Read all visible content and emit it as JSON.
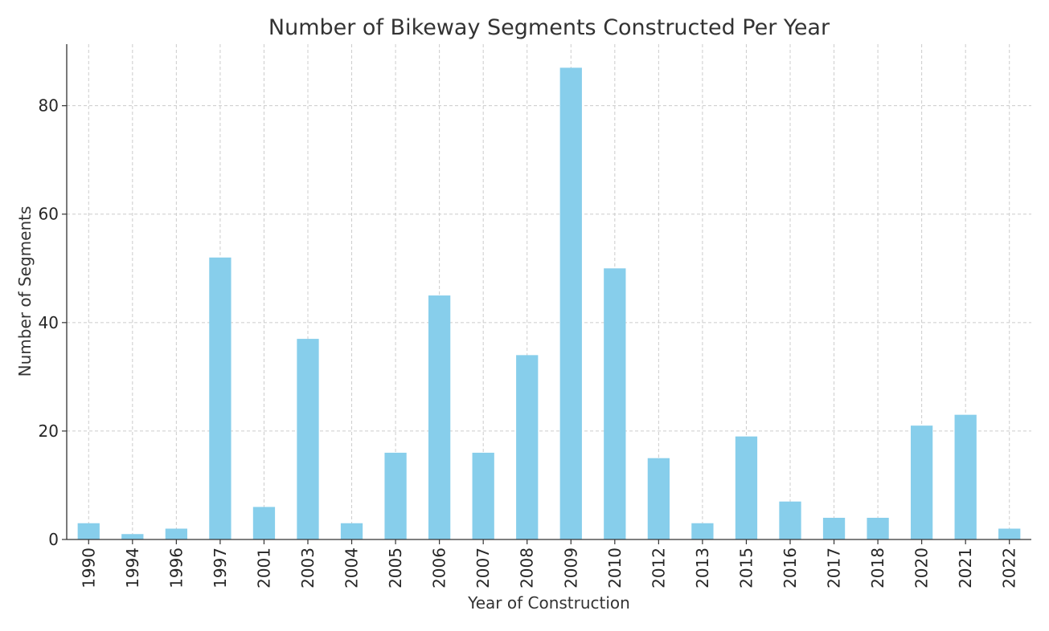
{
  "chart_data": {
    "type": "bar",
    "title": "Number of Bikeway Segments Constructed Per Year",
    "xlabel": "Year of Construction",
    "ylabel": "Number of Segments",
    "categories": [
      "1990",
      "1994",
      "1996",
      "1997",
      "2001",
      "2003",
      "2004",
      "2005",
      "2006",
      "2007",
      "2008",
      "2009",
      "2010",
      "2012",
      "2013",
      "2015",
      "2016",
      "2017",
      "2018",
      "2020",
      "2021",
      "2022"
    ],
    "values": [
      3,
      1,
      2,
      52,
      6,
      37,
      3,
      16,
      45,
      16,
      34,
      87,
      50,
      15,
      3,
      19,
      7,
      4,
      4,
      21,
      23,
      2
    ],
    "ylim": [
      0,
      91.35
    ],
    "yticks": [
      0,
      20,
      40,
      60,
      80
    ],
    "grid": true,
    "bar_color": "#87CEEB",
    "grid_color": "#cccccc",
    "axis_color": "#333333"
  }
}
